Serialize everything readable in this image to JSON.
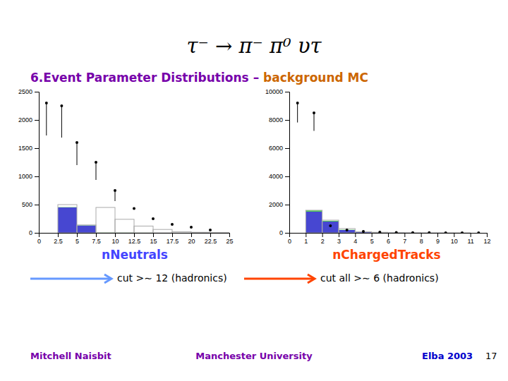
{
  "chart_data": [
    {
      "type": "bar",
      "title": "nNeutrals",
      "title_color": "#4444ff",
      "bins": [
        0,
        2.5,
        5,
        7.5,
        10,
        12.5,
        15,
        17.5,
        20,
        22.5,
        25
      ],
      "stacked": true,
      "grid": false,
      "series": [
        {
          "type": "bar",
          "color": "#3333cc",
          "values": [
            0,
            450,
            130,
            0,
            0,
            0,
            0,
            0,
            0,
            0
          ]
        },
        {
          "type": "bar",
          "color": "#44cc44",
          "values": [
            0,
            5,
            5,
            3,
            2,
            1,
            0,
            0,
            0,
            0
          ]
        },
        {
          "type": "step",
          "color": "#aaaaaa",
          "values": [
            0,
            500,
            140,
            450,
            240,
            120,
            60,
            20,
            10,
            5
          ]
        },
        {
          "type": "scatter",
          "marker": "dot",
          "color": "#000000",
          "x": [
            1,
            3,
            5,
            7.5,
            10,
            12.5,
            15,
            17.5,
            20,
            22.5
          ],
          "values": [
            2300,
            2250,
            1600,
            1250,
            750,
            430,
            250,
            150,
            100,
            50
          ],
          "error_minus": [
            575,
            562.5,
            400,
            312.5,
            187.5,
            null,
            null,
            null,
            null,
            null
          ]
        }
      ],
      "xlim": [
        0,
        25
      ],
      "xticks": [
        0,
        2.5,
        5,
        7.5,
        10,
        12.5,
        15,
        17.5,
        20,
        22.5,
        25
      ],
      "ylim": [
        0,
        2500
      ],
      "yticks": [
        0,
        500,
        1000,
        1500,
        2000,
        2500
      ],
      "annotations": [
        {
          "text": "τ⁻ → π⁻ π⁰ υτ",
          "color": "#000000"
        },
        {
          "text": "6.Event Parameter Distributions – ",
          "color": "#7700aa"
        },
        {
          "text": "background MC",
          "color": "#cc6600"
        },
        {
          "text": "cut >∼ 12 (hadronics)",
          "color": "#000000",
          "arrow_color": "#6699ff"
        },
        {
          "text": "Mitchell Naisbit",
          "color": "#7700aa"
        },
        {
          "text": "Manchester University",
          "color": "#7700aa"
        },
        {
          "text": "Elba 2003",
          "color": "#0000cc"
        },
        {
          "text": "17",
          "color": "#000000"
        }
      ]
    },
    {
      "type": "bar",
      "title": "nChargedTracks",
      "title_color": "#ff4400",
      "bins": [
        0,
        1,
        2,
        3,
        4,
        5,
        6,
        7,
        8,
        9,
        10,
        11,
        12
      ],
      "stacked": true,
      "grid": false,
      "series": [
        {
          "type": "bar",
          "color": "#3333cc",
          "values": [
            0,
            1500,
            800,
            200,
            50,
            20,
            10,
            5,
            2,
            1,
            0,
            0
          ]
        },
        {
          "type": "bar",
          "color": "#44cc44",
          "values": [
            0,
            100,
            50,
            20,
            10,
            5,
            3,
            1,
            0,
            0,
            0,
            0
          ]
        },
        {
          "type": "step",
          "color": "#aaaaaa",
          "values": [
            0,
            1600,
            900,
            300,
            80,
            40,
            15,
            8,
            3,
            2,
            1,
            0
          ]
        },
        {
          "type": "scatter",
          "marker": "dot",
          "color": "#000000",
          "x": [
            0.5,
            1.5,
            2.5,
            3.5,
            4.5,
            5.5,
            6.5,
            7.5,
            8.5,
            9.5,
            10.5,
            11.5
          ],
          "values": [
            9200,
            8500,
            500,
            200,
            100,
            50,
            30,
            15,
            8,
            4,
            2,
            1
          ],
          "error_minus": [
            1380,
            1275,
            null,
            null,
            null,
            null,
            null,
            null,
            null,
            null,
            null,
            null
          ]
        }
      ],
      "xlim": [
        0,
        12
      ],
      "xticks": [
        0,
        1,
        2,
        3,
        4,
        5,
        6,
        7,
        8,
        9,
        10,
        11,
        12
      ],
      "ylim": [
        0,
        10000
      ],
      "yticks": [
        0,
        2000,
        4000,
        6000,
        8000,
        10000
      ],
      "annotations": [
        {
          "text": "cut all >∼ 6 (hadronics)",
          "color": "#000000",
          "arrow_color": "#ff4400"
        }
      ]
    }
  ]
}
